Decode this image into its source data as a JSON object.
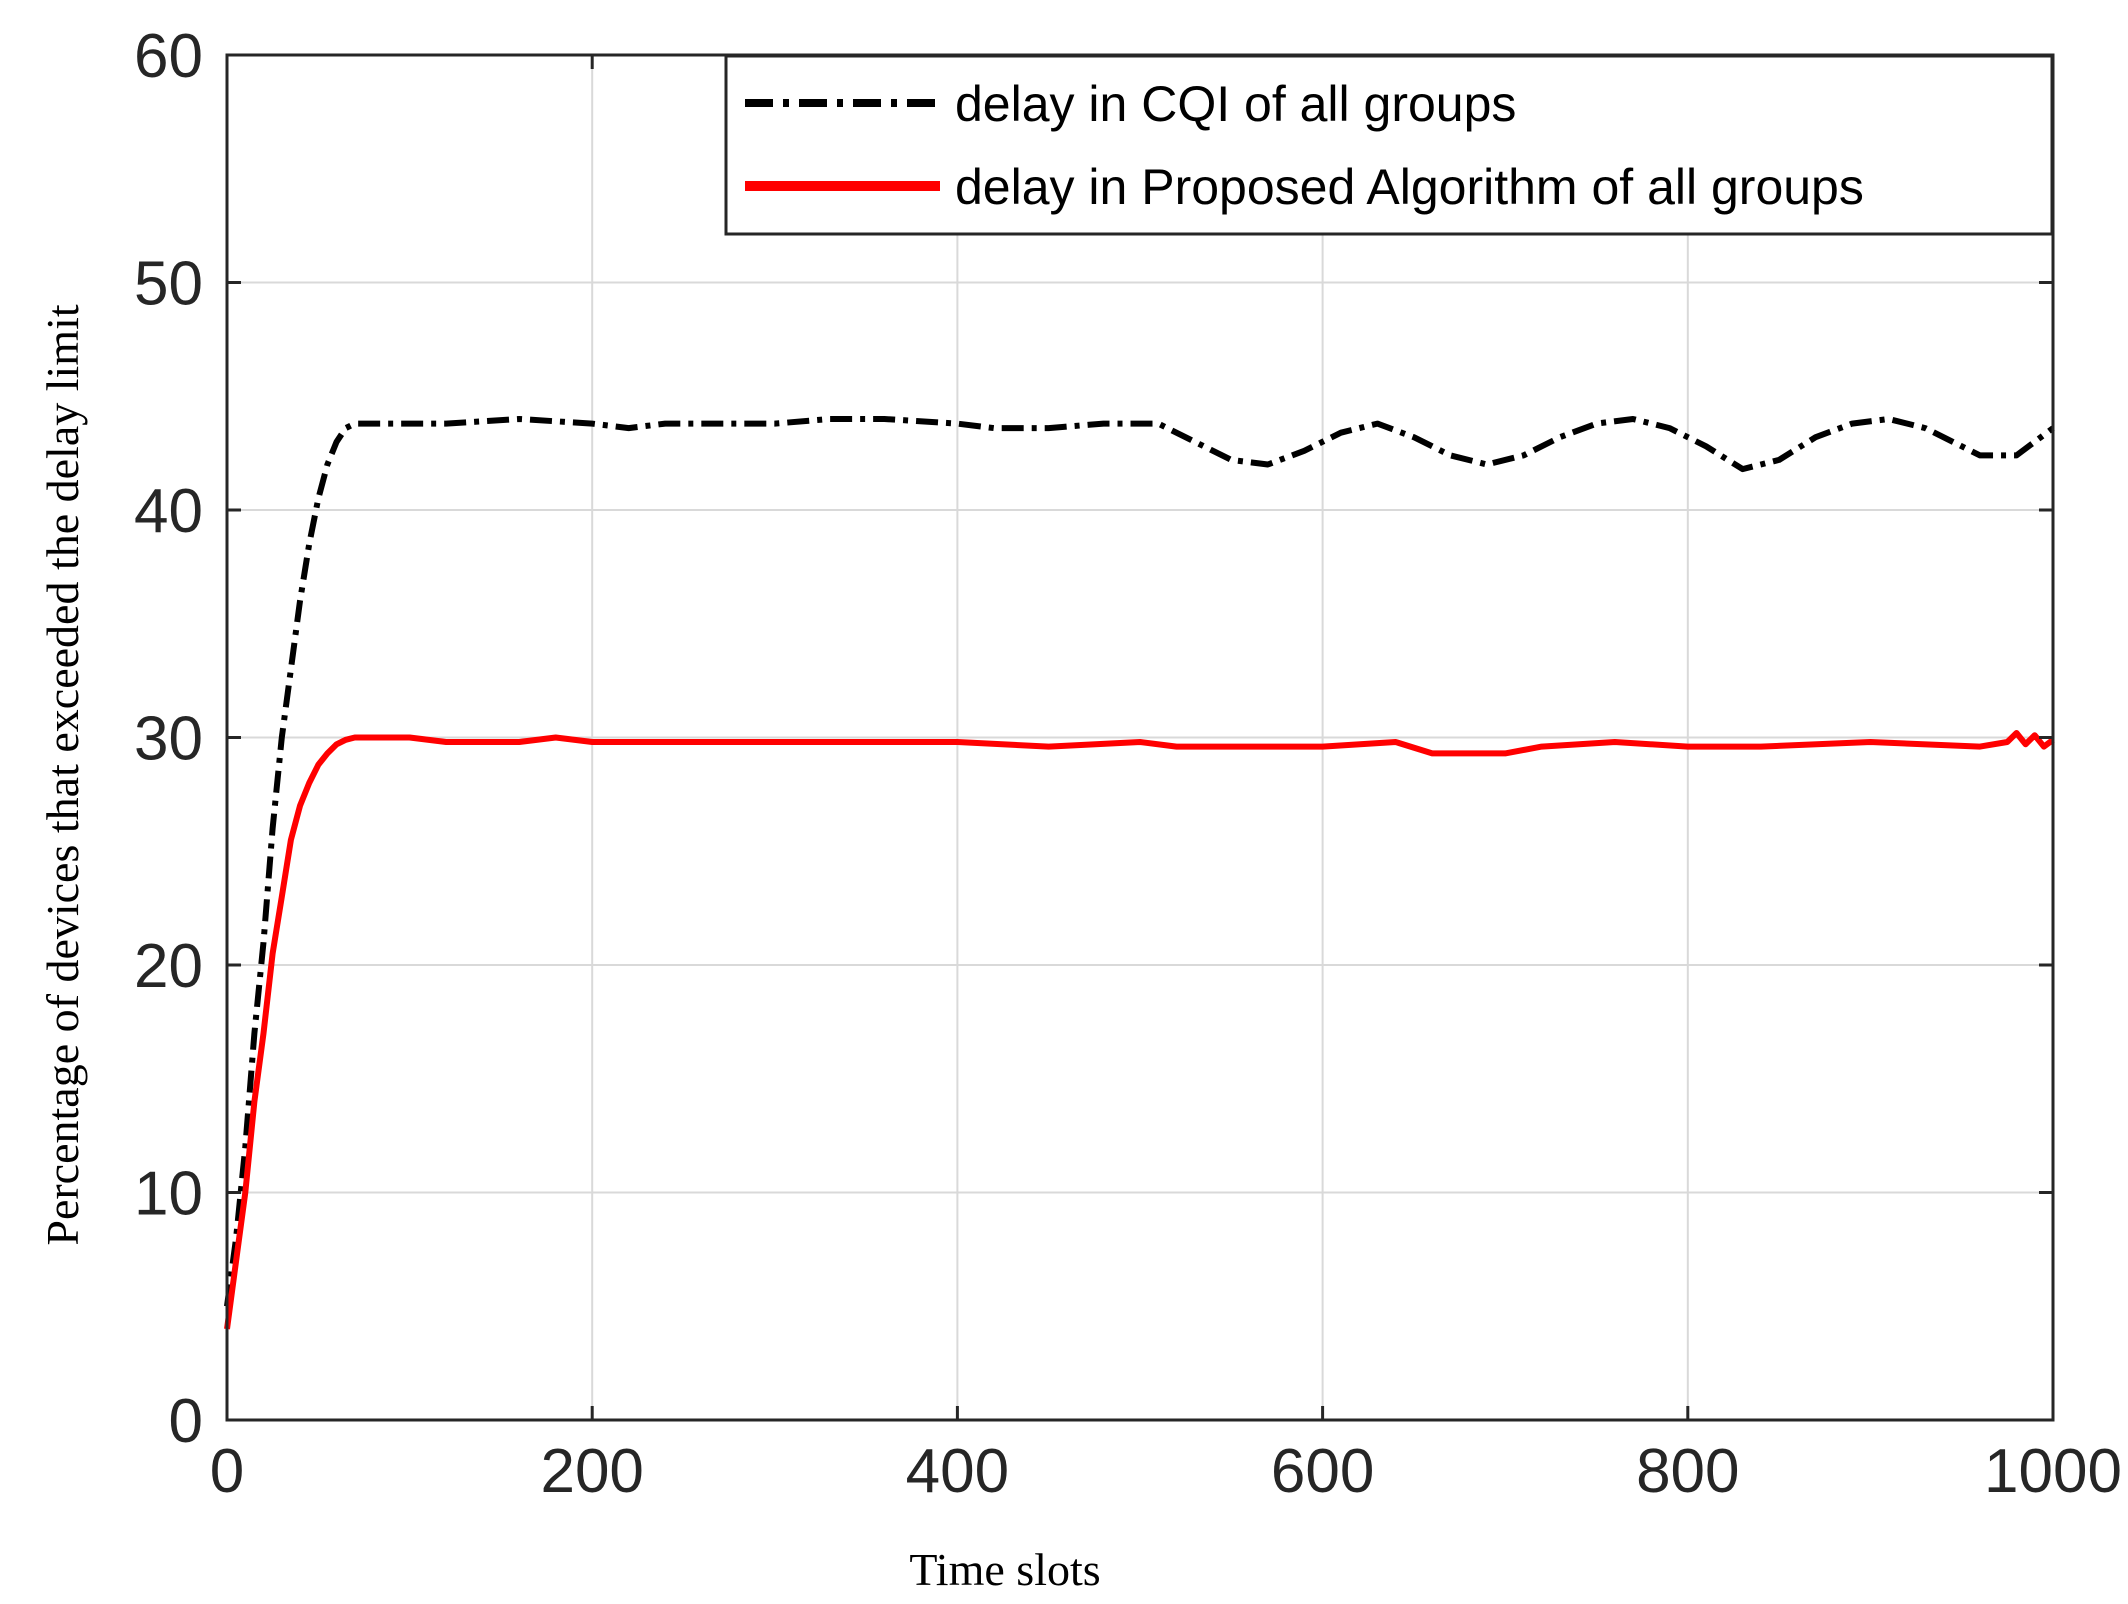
{
  "chart_data": {
    "type": "line",
    "title": "",
    "xlabel": "Time slots",
    "ylabel": "Percentage of devices that exceeded the delay limit",
    "xlim": [
      0,
      1000
    ],
    "ylim": [
      0,
      60
    ],
    "xticks": [
      0,
      200,
      400,
      600,
      800,
      1000
    ],
    "yticks": [
      0,
      10,
      20,
      30,
      40,
      50,
      60
    ],
    "grid": true,
    "legend_position": "top-right",
    "series": [
      {
        "name": "delay in CQI of all groups",
        "color": "#000000",
        "style": "dash-dot",
        "x": [
          0,
          5,
          10,
          15,
          20,
          25,
          30,
          35,
          40,
          45,
          50,
          55,
          60,
          65,
          70,
          80,
          100,
          120,
          160,
          200,
          220,
          240,
          300,
          330,
          360,
          400,
          420,
          450,
          480,
          510,
          530,
          550,
          570,
          590,
          610,
          630,
          650,
          670,
          690,
          710,
          730,
          750,
          770,
          790,
          810,
          830,
          850,
          870,
          890,
          910,
          930,
          960,
          980,
          1000
        ],
        "y": [
          5,
          8,
          12,
          17,
          21,
          26,
          30,
          33,
          36,
          38.5,
          40.5,
          42,
          43,
          43.6,
          43.8,
          43.8,
          43.8,
          43.8,
          44,
          43.8,
          43.6,
          43.8,
          43.8,
          44,
          44,
          43.8,
          43.6,
          43.6,
          43.8,
          43.8,
          43,
          42.2,
          42,
          42.6,
          43.4,
          43.8,
          43.2,
          42.4,
          42,
          42.4,
          43.2,
          43.8,
          44,
          43.6,
          42.8,
          41.8,
          42.2,
          43.2,
          43.8,
          44,
          43.6,
          42.4,
          42.4,
          43.6
        ]
      },
      {
        "name": "delay in Proposed Algorithm of all groups",
        "color": "#ff0000",
        "style": "solid",
        "x": [
          0,
          5,
          10,
          15,
          20,
          25,
          30,
          35,
          40,
          45,
          50,
          55,
          60,
          65,
          70,
          80,
          100,
          120,
          160,
          180,
          200,
          300,
          400,
          450,
          500,
          520,
          560,
          600,
          640,
          660,
          700,
          720,
          760,
          800,
          840,
          900,
          960,
          975,
          980,
          985,
          990,
          995,
          1000
        ],
        "y": [
          4,
          7,
          10,
          14,
          17,
          20.5,
          23,
          25.5,
          27,
          28,
          28.8,
          29.3,
          29.7,
          29.9,
          30,
          30,
          30,
          29.8,
          29.8,
          30,
          29.8,
          29.8,
          29.8,
          29.6,
          29.8,
          29.6,
          29.6,
          29.6,
          29.8,
          29.3,
          29.3,
          29.6,
          29.8,
          29.6,
          29.6,
          29.8,
          29.6,
          29.8,
          30.2,
          29.7,
          30.1,
          29.6,
          29.9
        ]
      }
    ]
  }
}
